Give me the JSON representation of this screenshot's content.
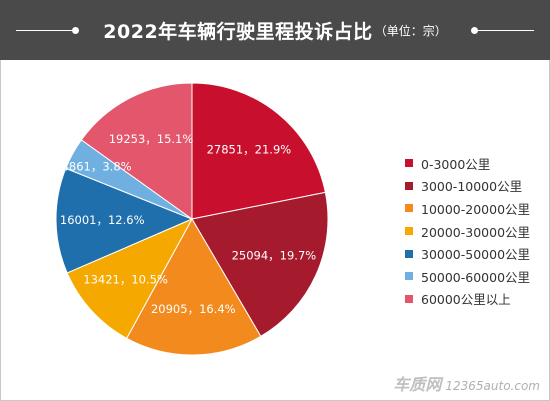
{
  "header": {
    "title": "2022年车辆行驶里程投诉占比",
    "unit": "（单位：宗）"
  },
  "chart_data": {
    "type": "pie",
    "title": "2022年车辆行驶里程投诉占比",
    "unit": "（单位：宗）",
    "start_angle_deg": 0,
    "direction": "clockwise",
    "legend_position": "right",
    "slices": [
      {
        "label": "0-3000公里",
        "value": 27851,
        "percent": "21.9%",
        "data_label": "27851，21.9%",
        "color": "#c8102e"
      },
      {
        "label": "3000-10000公里",
        "value": 25094,
        "percent": "19.7%",
        "data_label": "25094，19.7%",
        "color": "#a61a2e"
      },
      {
        "label": "10000-20000公里",
        "value": 20905,
        "percent": "16.4%",
        "data_label": "20905，16.4%",
        "color": "#f28a1e"
      },
      {
        "label": "20000-30000公里",
        "value": 13421,
        "percent": "10.5%",
        "data_label": "13421，10.5%",
        "color": "#f5a800"
      },
      {
        "label": "30000-50000公里",
        "value": 16001,
        "percent": "12.6%",
        "data_label": "16001，12.6%",
        "color": "#1f6fad"
      },
      {
        "label": "50000-60000公里",
        "value": 4861,
        "percent": "3.8%",
        "data_label": "4861，3.8%",
        "color": "#6fb0e0"
      },
      {
        "label": "60000公里以上",
        "value": 19253,
        "percent": "15.1%",
        "data_label": "19253，15.1%",
        "color": "#e4566c"
      }
    ]
  },
  "watermark": {
    "logo": "车质网",
    "url": "12365auto.com"
  }
}
